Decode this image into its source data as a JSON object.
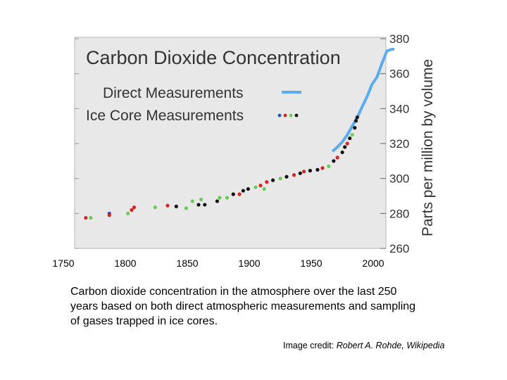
{
  "chart_data": {
    "type": "scatter",
    "title": "Carbon Dioxide Concentration",
    "ylabel": "Parts per million by volume",
    "xlim": [
      1750,
      2000
    ],
    "ylim": [
      260,
      380
    ],
    "x_ticks": [
      1750,
      1800,
      1850,
      1900,
      1950,
      2000
    ],
    "y_ticks": [
      260,
      280,
      300,
      320,
      340,
      360,
      380
    ],
    "grid": false,
    "legend_position": "top-left",
    "colors": {
      "plot_background": "#e8e8e8",
      "direct": "#5aabf0",
      "red": "#dd2222",
      "green": "#66cc55",
      "blue": "#2255bb",
      "black": "#111111"
    },
    "legend": [
      {
        "label": "Direct Measurements",
        "marker": "line"
      },
      {
        "label": "Ice Core Measurements",
        "marker": "dots"
      }
    ],
    "series": [
      {
        "name": "Direct Measurements",
        "style": "line",
        "color": "#5aabf0",
        "x": [
          1958,
          1962,
          1966,
          1970,
          1974,
          1978,
          1982,
          1986,
          1990,
          1994,
          1998,
          2002,
          2006,
          2008
        ],
        "y": [
          315.5,
          318,
          321,
          325,
          330,
          335,
          341,
          347,
          354,
          358,
          366,
          373,
          381,
          385
        ]
      },
      {
        "name": "Ice Core Measurements",
        "style": "dots",
        "points": [
          {
            "x": 1759,
            "y": 277.5,
            "c": "red"
          },
          {
            "x": 1763,
            "y": 277.5,
            "c": "green"
          },
          {
            "x": 1778,
            "y": 280,
            "c": "blue"
          },
          {
            "x": 1778,
            "y": 279,
            "c": "red"
          },
          {
            "x": 1793,
            "y": 280,
            "c": "green"
          },
          {
            "x": 1796,
            "y": 282,
            "c": "red"
          },
          {
            "x": 1798,
            "y": 283.5,
            "c": "red"
          },
          {
            "x": 1815,
            "y": 283.5,
            "c": "green"
          },
          {
            "x": 1825,
            "y": 284.5,
            "c": "red"
          },
          {
            "x": 1832,
            "y": 284,
            "c": "black"
          },
          {
            "x": 1840,
            "y": 283,
            "c": "green"
          },
          {
            "x": 1845,
            "y": 287,
            "c": "green"
          },
          {
            "x": 1850,
            "y": 285,
            "c": "black"
          },
          {
            "x": 1852,
            "y": 288,
            "c": "green"
          },
          {
            "x": 1855,
            "y": 285,
            "c": "black"
          },
          {
            "x": 1865,
            "y": 287,
            "c": "black"
          },
          {
            "x": 1867,
            "y": 289,
            "c": "green"
          },
          {
            "x": 1873,
            "y": 289,
            "c": "green"
          },
          {
            "x": 1878,
            "y": 291,
            "c": "black"
          },
          {
            "x": 1883,
            "y": 291,
            "c": "red"
          },
          {
            "x": 1886,
            "y": 293,
            "c": "black"
          },
          {
            "x": 1890,
            "y": 294,
            "c": "black"
          },
          {
            "x": 1896,
            "y": 295,
            "c": "green"
          },
          {
            "x": 1900,
            "y": 296,
            "c": "red"
          },
          {
            "x": 1903,
            "y": 294,
            "c": "green"
          },
          {
            "x": 1905,
            "y": 298,
            "c": "red"
          },
          {
            "x": 1910,
            "y": 299,
            "c": "black"
          },
          {
            "x": 1916,
            "y": 300,
            "c": "green"
          },
          {
            "x": 1921,
            "y": 301,
            "c": "black"
          },
          {
            "x": 1927,
            "y": 302,
            "c": "red"
          },
          {
            "x": 1932,
            "y": 303,
            "c": "black"
          },
          {
            "x": 1935,
            "y": 304,
            "c": "red"
          },
          {
            "x": 1940,
            "y": 304.5,
            "c": "black"
          },
          {
            "x": 1946,
            "y": 305,
            "c": "black"
          },
          {
            "x": 1950,
            "y": 306,
            "c": "red"
          },
          {
            "x": 1955,
            "y": 307,
            "c": "green"
          },
          {
            "x": 1959,
            "y": 310,
            "c": "black"
          },
          {
            "x": 1962,
            "y": 312,
            "c": "red"
          },
          {
            "x": 1966,
            "y": 315,
            "c": "black"
          },
          {
            "x": 1968,
            "y": 318,
            "c": "black"
          },
          {
            "x": 1970,
            "y": 320,
            "c": "red"
          },
          {
            "x": 1972,
            "y": 323,
            "c": "black"
          },
          {
            "x": 1974,
            "y": 325,
            "c": "green"
          },
          {
            "x": 1976,
            "y": 329,
            "c": "black"
          },
          {
            "x": 1977,
            "y": 333,
            "c": "black"
          },
          {
            "x": 1978,
            "y": 335,
            "c": "black"
          }
        ]
      }
    ]
  },
  "caption": "Carbon dioxide concentration in the atmosphere over the last 250 years based on both direct atmospheric measurements and sampling of gases trapped in ice cores.",
  "credit": {
    "prefix": "Image credit: ",
    "source": "Robert A. Rohde, Wikipedia"
  }
}
